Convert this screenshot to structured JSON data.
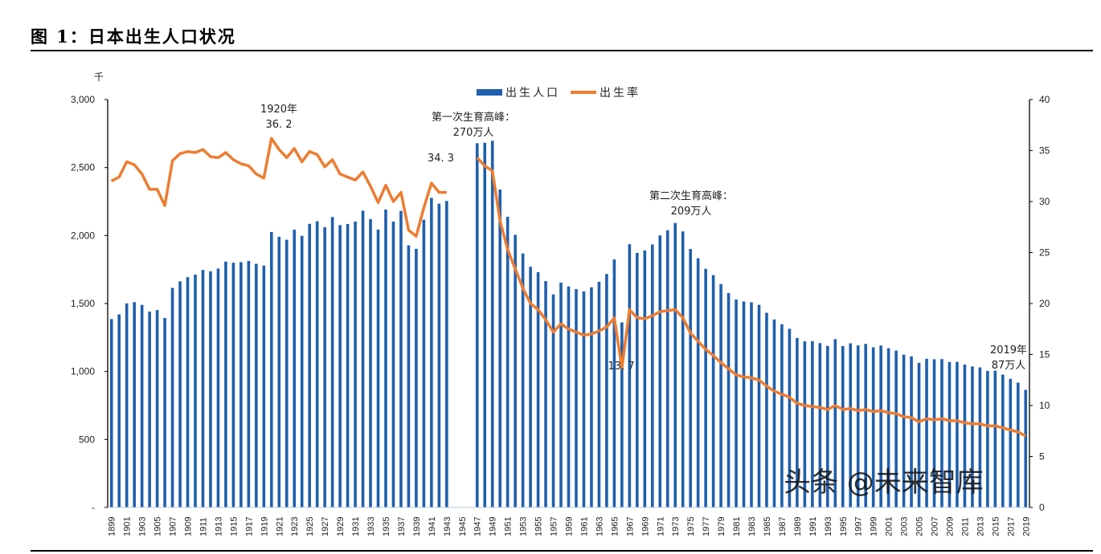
{
  "title": "图 1：日本出生人口状况",
  "watermark": "头条 @未来智库",
  "chart_data": {
    "type": "bar+line",
    "left_unit": "千",
    "ylim_left": [
      0,
      3000
    ],
    "ylim_right": [
      0,
      40
    ],
    "left_ticks": [
      "-",
      "500",
      "1,000",
      "1,500",
      "2,000",
      "2,500",
      "3,000"
    ],
    "right_ticks": [
      "0",
      "5",
      "10",
      "15",
      "20",
      "25",
      "30",
      "35",
      "40"
    ],
    "legend_position": "top-center",
    "colors": {
      "bar": "#1f5fad",
      "line": "#ed7d31"
    },
    "categories": [
      1899,
      1900,
      1901,
      1902,
      1903,
      1904,
      1905,
      1906,
      1907,
      1908,
      1909,
      1910,
      1911,
      1912,
      1913,
      1914,
      1915,
      1916,
      1917,
      1918,
      1919,
      1920,
      1921,
      1922,
      1923,
      1924,
      1925,
      1926,
      1927,
      1928,
      1929,
      1930,
      1931,
      1932,
      1933,
      1934,
      1935,
      1936,
      1937,
      1938,
      1939,
      1940,
      1941,
      1942,
      1943,
      1944,
      1945,
      1946,
      1947,
      1948,
      1949,
      1950,
      1951,
      1952,
      1953,
      1954,
      1955,
      1956,
      1957,
      1958,
      1959,
      1960,
      1961,
      1962,
      1963,
      1964,
      1965,
      1966,
      1967,
      1968,
      1969,
      1970,
      1971,
      1972,
      1973,
      1974,
      1975,
      1976,
      1977,
      1978,
      1979,
      1980,
      1981,
      1982,
      1983,
      1984,
      1985,
      1986,
      1987,
      1988,
      1989,
      1990,
      1991,
      1992,
      1993,
      1994,
      1995,
      1996,
      1997,
      1998,
      1999,
      2000,
      2001,
      2002,
      2003,
      2004,
      2005,
      2006,
      2007,
      2008,
      2009,
      2010,
      2011,
      2012,
      2013,
      2014,
      2015,
      2016,
      2017,
      2018,
      2019
    ],
    "series": [
      {
        "name": "出生人口",
        "type": "bar",
        "axis": "left",
        "values": [
          1386,
          1420,
          1501,
          1510,
          1490,
          1440,
          1452,
          1394,
          1615,
          1663,
          1694,
          1712,
          1747,
          1737,
          1757,
          1808,
          1800,
          1804,
          1813,
          1792,
          1779,
          2026,
          1991,
          1969,
          2043,
          1998,
          2086,
          2105,
          2061,
          2136,
          2077,
          2085,
          2103,
          2183,
          2121,
          2044,
          2191,
          2102,
          2181,
          1928,
          1902,
          2116,
          2277,
          2234,
          2254,
          null,
          null,
          null,
          2679,
          2682,
          2697,
          2338,
          2138,
          2005,
          1868,
          1770,
          1731,
          1665,
          1567,
          1653,
          1626,
          1606,
          1589,
          1619,
          1660,
          1717,
          1824,
          1361,
          1936,
          1872,
          1890,
          1934,
          2001,
          2039,
          2092,
          2030,
          1901,
          1833,
          1755,
          1709,
          1643,
          1577,
          1529,
          1515,
          1509,
          1490,
          1432,
          1383,
          1347,
          1314,
          1247,
          1222,
          1223,
          1209,
          1188,
          1238,
          1187,
          1207,
          1192,
          1203,
          1178,
          1191,
          1171,
          1154,
          1124,
          1111,
          1063,
          1093,
          1090,
          1091,
          1070,
          1071,
          1051,
          1037,
          1030,
          1004,
          1006,
          977,
          946,
          918,
          865
        ]
      },
      {
        "name": "出生率",
        "type": "line",
        "axis": "right",
        "values": [
          32.0,
          32.4,
          33.9,
          33.6,
          32.7,
          31.2,
          31.2,
          29.6,
          34.0,
          34.7,
          34.9,
          34.8,
          35.1,
          34.4,
          34.3,
          34.8,
          34.1,
          33.7,
          33.5,
          32.7,
          32.3,
          36.2,
          35.1,
          34.3,
          35.2,
          33.9,
          34.9,
          34.6,
          33.4,
          34.1,
          32.7,
          32.4,
          32.1,
          32.9,
          31.5,
          29.9,
          31.6,
          30.0,
          30.9,
          27.2,
          26.6,
          29.4,
          31.8,
          30.9,
          30.9,
          null,
          null,
          null,
          34.3,
          33.5,
          33.0,
          28.1,
          25.3,
          23.4,
          21.5,
          20.0,
          19.4,
          18.4,
          17.2,
          18.0,
          17.5,
          17.2,
          16.9,
          17.0,
          17.3,
          17.7,
          18.6,
          13.7,
          19.4,
          18.6,
          18.5,
          18.8,
          19.2,
          19.3,
          19.4,
          18.6,
          17.1,
          16.3,
          15.5,
          14.9,
          14.2,
          13.6,
          13.0,
          12.8,
          12.7,
          12.5,
          11.9,
          11.4,
          11.1,
          10.8,
          10.2,
          10.0,
          9.9,
          9.8,
          9.6,
          10.0,
          9.6,
          9.7,
          9.5,
          9.6,
          9.4,
          9.5,
          9.3,
          9.2,
          8.9,
          8.8,
          8.4,
          8.7,
          8.6,
          8.7,
          8.5,
          8.5,
          8.3,
          8.2,
          8.2,
          8.0,
          8.0,
          7.8,
          7.6,
          7.4,
          7.0
        ]
      }
    ],
    "annotations": [
      {
        "lines": [
          "1920年",
          "36. 2"
        ],
        "year": 1920
      },
      {
        "lines": [
          "第一次生育高峰：",
          "270万人"
        ],
        "year": 1949
      },
      {
        "lines": [
          "34. 3"
        ],
        "year": 1947
      },
      {
        "lines": [
          "第二次生育高峰：",
          "209万人"
        ],
        "year": 1973
      },
      {
        "lines": [
          "13. 7"
        ],
        "year": 1966
      },
      {
        "lines": [
          "2019年",
          "87万人"
        ],
        "year": 2019
      }
    ]
  }
}
